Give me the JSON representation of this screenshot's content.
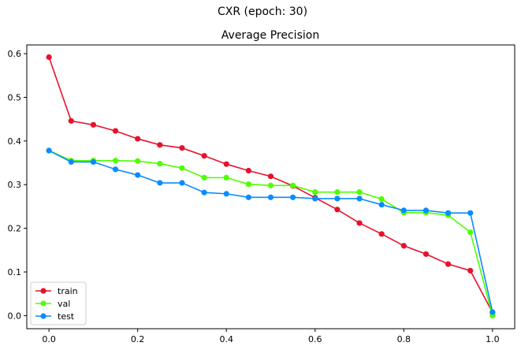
{
  "figure": {
    "suptitle": "CXR (epoch: 30)"
  },
  "chart_data": {
    "type": "line",
    "title": "Average Precision",
    "xlabel": "",
    "ylabel": "",
    "xlim": [
      -0.05,
      1.05
    ],
    "ylim": [
      -0.03,
      0.62
    ],
    "xticks": [
      0.0,
      0.2,
      0.4,
      0.6,
      0.8,
      1.0
    ],
    "xtick_labels": [
      "0.0",
      "0.2",
      "0.4",
      "0.6",
      "0.8",
      "1.0"
    ],
    "yticks": [
      0.0,
      0.1,
      0.2,
      0.3,
      0.4,
      0.5,
      0.6
    ],
    "ytick_labels": [
      "0.0",
      "0.1",
      "0.2",
      "0.3",
      "0.4",
      "0.5",
      "0.6"
    ],
    "grid": false,
    "legend_position": "lower-left",
    "x": [
      0.0,
      0.05,
      0.1,
      0.15,
      0.2,
      0.25,
      0.3,
      0.35,
      0.4,
      0.45,
      0.5,
      0.55,
      0.6,
      0.65,
      0.7,
      0.75,
      0.8,
      0.85,
      0.9,
      0.95,
      1.0
    ],
    "series": [
      {
        "name": "train",
        "color": "#e8112d",
        "values": [
          0.592,
          0.446,
          0.437,
          0.423,
          0.405,
          0.391,
          0.384,
          0.366,
          0.347,
          0.332,
          0.319,
          0.297,
          0.27,
          0.243,
          0.212,
          0.187,
          0.16,
          0.141,
          0.118,
          0.103,
          0.007
        ]
      },
      {
        "name": "val",
        "color": "#4dff00",
        "values": [
          0.378,
          0.355,
          0.355,
          0.355,
          0.354,
          0.348,
          0.338,
          0.316,
          0.316,
          0.301,
          0.298,
          0.298,
          0.283,
          0.283,
          0.283,
          0.267,
          0.236,
          0.236,
          0.23,
          0.191,
          0.0
        ]
      },
      {
        "name": "test",
        "color": "#0a8cff",
        "values": [
          0.378,
          0.352,
          0.352,
          0.335,
          0.322,
          0.304,
          0.304,
          0.282,
          0.279,
          0.271,
          0.271,
          0.271,
          0.268,
          0.268,
          0.268,
          0.254,
          0.241,
          0.241,
          0.235,
          0.235,
          0.008
        ]
      }
    ]
  }
}
